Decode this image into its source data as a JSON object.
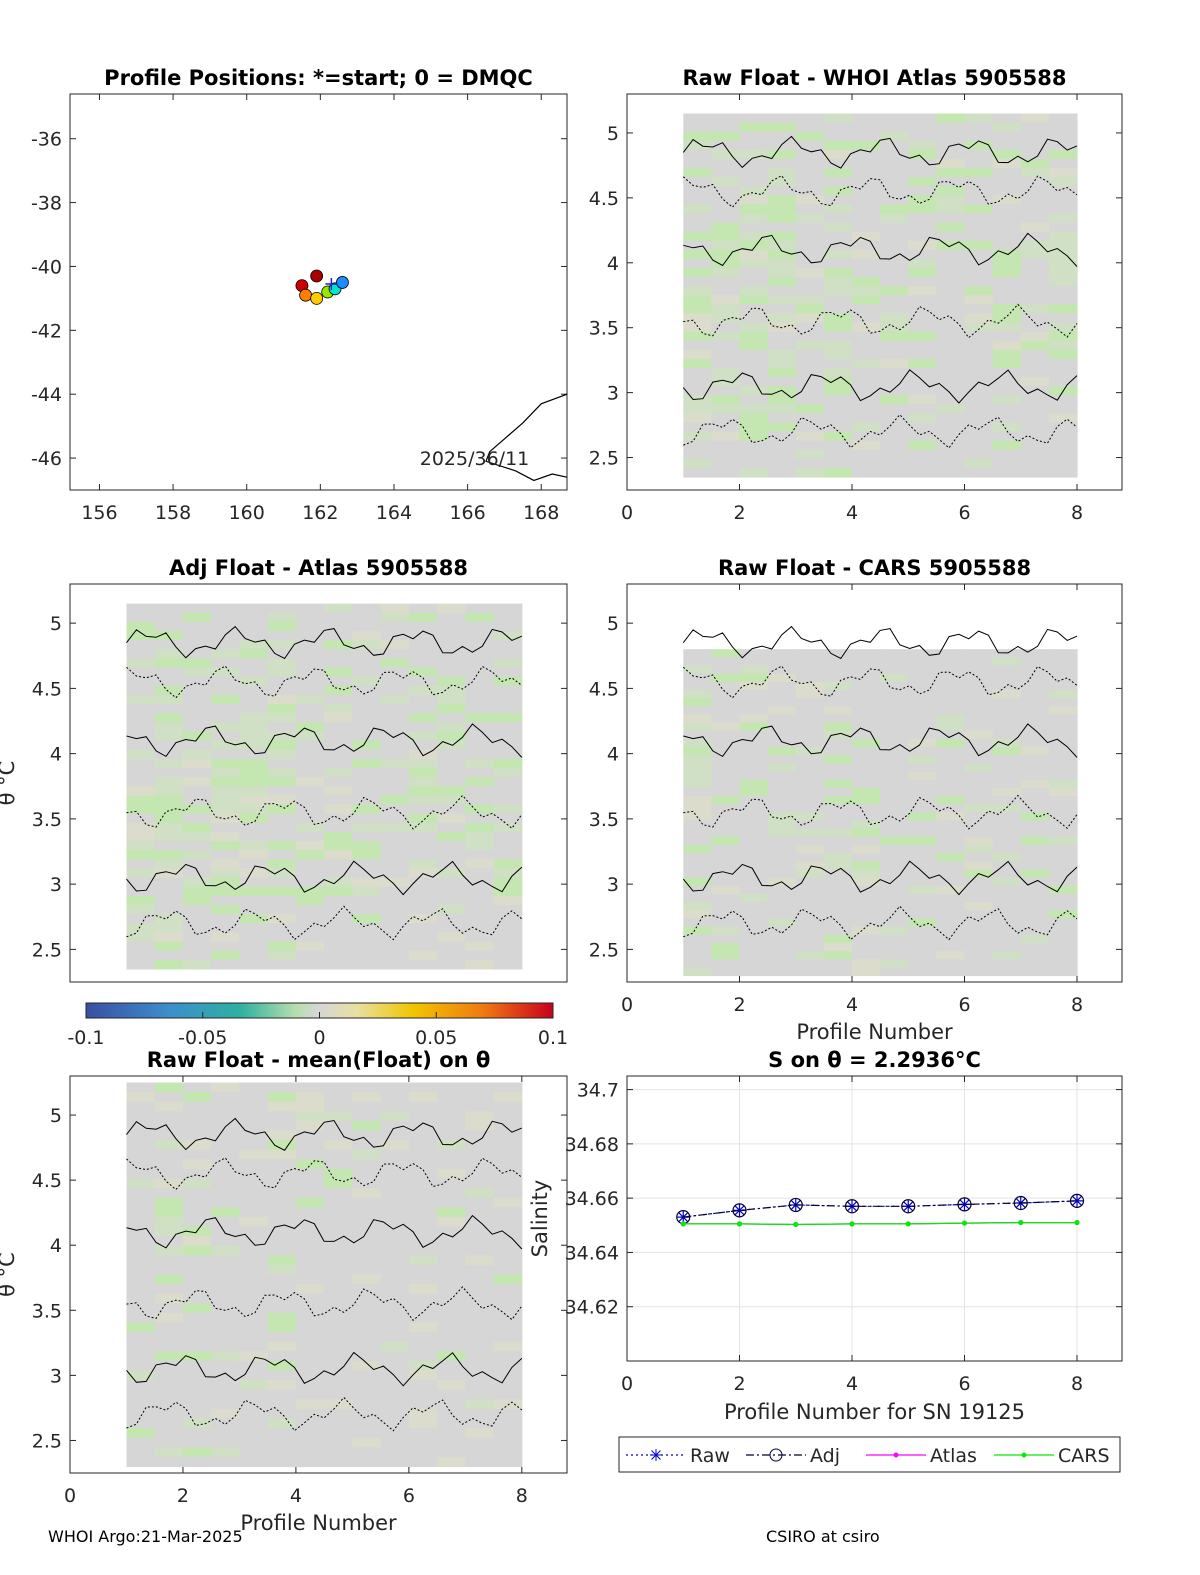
{
  "footer": {
    "left": "WHOI Argo:21-Mar-2025",
    "right": "CSIRO at csiro"
  },
  "colorbar": {
    "ticks": [
      "-0.1",
      "-0.05",
      "0",
      "0.05",
      "0.1"
    ]
  },
  "chart_data": [
    {
      "type": "scatter",
      "title": "Profile Positions: *=start; 0 = DMQC",
      "xlim": [
        155.2,
        168.7
      ],
      "ylim": [
        -47,
        -34.6
      ],
      "xticks": [
        "156",
        "158",
        "160",
        "162",
        "164",
        "166",
        "168"
      ],
      "yticks": [
        "-36",
        "-38",
        "-40",
        "-42",
        "-44",
        "-46"
      ],
      "annotation": "2025/36/11",
      "points": [
        {
          "lon": 161.5,
          "lat": -40.6,
          "color": "#cc0000"
        },
        {
          "lon": 161.9,
          "lat": -40.3,
          "color": "#aa0000"
        },
        {
          "lon": 161.6,
          "lat": -40.9,
          "color": "#ff8000"
        },
        {
          "lon": 161.9,
          "lat": -41.0,
          "color": "#ffcc00"
        },
        {
          "lon": 162.2,
          "lat": -40.8,
          "color": "#99e600"
        },
        {
          "lon": 162.4,
          "lat": -40.7,
          "color": "#00e6cc"
        },
        {
          "lon": 162.6,
          "lat": -40.5,
          "color": "#1a8cff"
        }
      ]
    },
    {
      "type": "heatmap",
      "title": "Raw Float - WHOI Atlas  5905588",
      "xlabel": "",
      "ylabel": "",
      "xlim": [
        0,
        8.8
      ],
      "ylim": [
        2.25,
        5.3
      ],
      "xticks": [
        "0",
        "2",
        "4",
        "6",
        "8"
      ],
      "yticks": [
        "2.5",
        "3",
        "3.5",
        "4",
        "4.5",
        "5"
      ]
    },
    {
      "type": "heatmap",
      "title": "Adj Float - Atlas  5905588",
      "xlabel": "",
      "ylabel": "θ °C",
      "xlim": [
        0,
        8.8
      ],
      "ylim": [
        2.25,
        5.3
      ],
      "xticks": [],
      "yticks": [
        "2.5",
        "3",
        "3.5",
        "4",
        "4.5",
        "5"
      ]
    },
    {
      "type": "heatmap",
      "title": "Raw Float - CARS  5905588",
      "xlabel": "Profile Number",
      "ylabel": "",
      "xlim": [
        0,
        8.8
      ],
      "ylim": [
        2.25,
        5.3
      ],
      "xticks": [
        "0",
        "2",
        "4",
        "6",
        "8"
      ],
      "yticks": [
        "2.5",
        "3",
        "3.5",
        "4",
        "4.5",
        "5"
      ]
    },
    {
      "type": "heatmap",
      "title": "Raw Float - mean(Float) on θ",
      "xlabel": "Profile Number",
      "ylabel": "θ °C",
      "xlim": [
        0,
        8.8
      ],
      "ylim": [
        2.25,
        5.3
      ],
      "xticks": [
        "0",
        "2",
        "4",
        "6",
        "8"
      ],
      "yticks": [
        "2.5",
        "3",
        "3.5",
        "4",
        "4.5",
        "5"
      ]
    },
    {
      "type": "line",
      "title": "S on θ = 2.2936°C",
      "xlabel": "Profile Number for SN 19125",
      "ylabel": "Salinity",
      "xlim": [
        0,
        8.8
      ],
      "ylim": [
        34.6,
        34.705
      ],
      "xticks": [
        "0",
        "2",
        "4",
        "6",
        "8"
      ],
      "yticks": [
        "34.62",
        "34.64",
        "34.66",
        "34.68",
        "34.7"
      ],
      "grid": true,
      "legend_position": "bottom",
      "x": [
        1,
        2,
        3,
        4,
        5,
        6,
        7,
        8
      ],
      "series": [
        {
          "name": "Raw",
          "color": "#0000cc",
          "values": [
            34.653,
            34.6555,
            34.6575,
            34.657,
            34.657,
            34.6577,
            34.6582,
            34.659
          ]
        },
        {
          "name": "Adj",
          "color": "#000033",
          "values": [
            34.653,
            34.6555,
            34.6575,
            34.657,
            34.657,
            34.6577,
            34.6582,
            34.659
          ]
        },
        {
          "name": "Atlas",
          "color": "#ff00ff",
          "values": [
            34.6505,
            34.6505,
            34.6503,
            34.6505,
            34.6505,
            34.6508,
            34.651,
            34.651
          ]
        },
        {
          "name": "CARS",
          "color": "#00ee00",
          "values": [
            34.6505,
            34.6505,
            34.6503,
            34.6505,
            34.6505,
            34.6508,
            34.651,
            34.651
          ]
        }
      ]
    }
  ]
}
